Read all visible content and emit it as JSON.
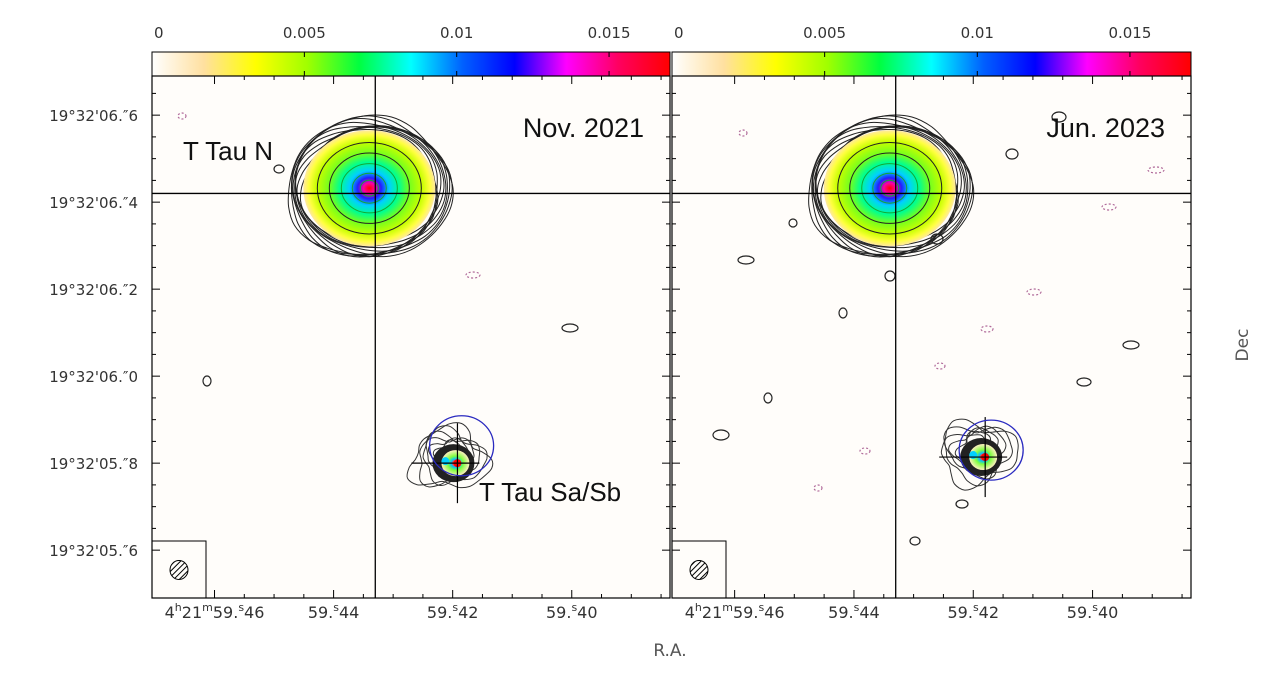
{
  "chart_data": {
    "type": "heatmap",
    "xlabel": "R.A.",
    "ylabel": "Dec",
    "colorbar": {
      "range": [
        0,
        0.017
      ],
      "ticks": [
        {
          "value": 0,
          "label": "0"
        },
        {
          "value": 0.005,
          "label": "0.005"
        },
        {
          "value": 0.01,
          "label": "0.01"
        },
        {
          "value": 0.015,
          "label": "0.015"
        }
      ],
      "colors": [
        "#ffffff",
        "#ffe0a0",
        "#ffff00",
        "#a0ff00",
        "#00ff40",
        "#00ffff",
        "#0060ff",
        "#0000ff",
        "#ff00ff",
        "#ff0060",
        "#ff0000"
      ]
    },
    "x_axis": {
      "range_seconds": [
        59.4705,
        59.3835
      ],
      "ticks": [
        {
          "value": 59.46,
          "label": "4h21m59.s46",
          "parts": {
            "h": "4",
            "m": "21",
            "s": "59",
            "frac": "46"
          }
        },
        {
          "value": 59.44,
          "label": "59.s44",
          "parts": {
            "s": "59",
            "frac": "44"
          }
        },
        {
          "value": 59.42,
          "label": "59.s42",
          "parts": {
            "s": "59",
            "frac": "42"
          }
        },
        {
          "value": 59.4,
          "label": "59.s40",
          "parts": {
            "s": "59",
            "frac": "40"
          }
        }
      ]
    },
    "y_axis": {
      "range_arcsec": [
        5.49,
        6.69
      ],
      "ticks": [
        {
          "value": 6.6,
          "label": "19°32′06.″6",
          "int": "19°32'06",
          "frac": "6"
        },
        {
          "value": 6.4,
          "label": "19°32′06.″4",
          "int": "19°32'06",
          "frac": "4"
        },
        {
          "value": 6.2,
          "label": "19°32′06.″2",
          "int": "19°32'06",
          "frac": "2"
        },
        {
          "value": 6.0,
          "label": "19°32′06.″0",
          "int": "19°32'06",
          "frac": "0"
        },
        {
          "value": 5.8,
          "label": "19°32′05.″8",
          "int": "19°32'05",
          "frac": "8"
        },
        {
          "value": 5.6,
          "label": "19°32′05.″6",
          "int": "19°32'05",
          "frac": "6"
        }
      ]
    },
    "panels": [
      {
        "title": "Nov. 2021",
        "labels": [
          "T Tau N",
          "T Tau Sa/Sb"
        ],
        "sources": [
          {
            "name": "T Tau N",
            "ra": 59.434,
            "dec": 6.432,
            "peak": 0.017
          },
          {
            "name": "T Tau Sa/Sb",
            "ra": 59.4192,
            "dec": 5.8,
            "peak": 0.012
          }
        ],
        "crosshair_lines": [
          {
            "ra": 59.433,
            "dec": 6.42
          }
        ],
        "ellipse_center": {
          "ra": 59.4185,
          "dec": 5.84
        }
      },
      {
        "title": "Jun. 2023",
        "labels": [],
        "sources": [
          {
            "name": "T Tau N",
            "ra": 59.434,
            "dec": 6.432,
            "peak": 0.017
          },
          {
            "name": "T Tau Sa/Sb",
            "ra": 59.418,
            "dec": 5.814,
            "peak": 0.013
          }
        ],
        "crosshair_lines": [
          {
            "ra": 59.433,
            "dec": 6.42
          }
        ],
        "ellipse_center": {
          "ra": 59.417,
          "dec": 5.83
        }
      }
    ]
  }
}
